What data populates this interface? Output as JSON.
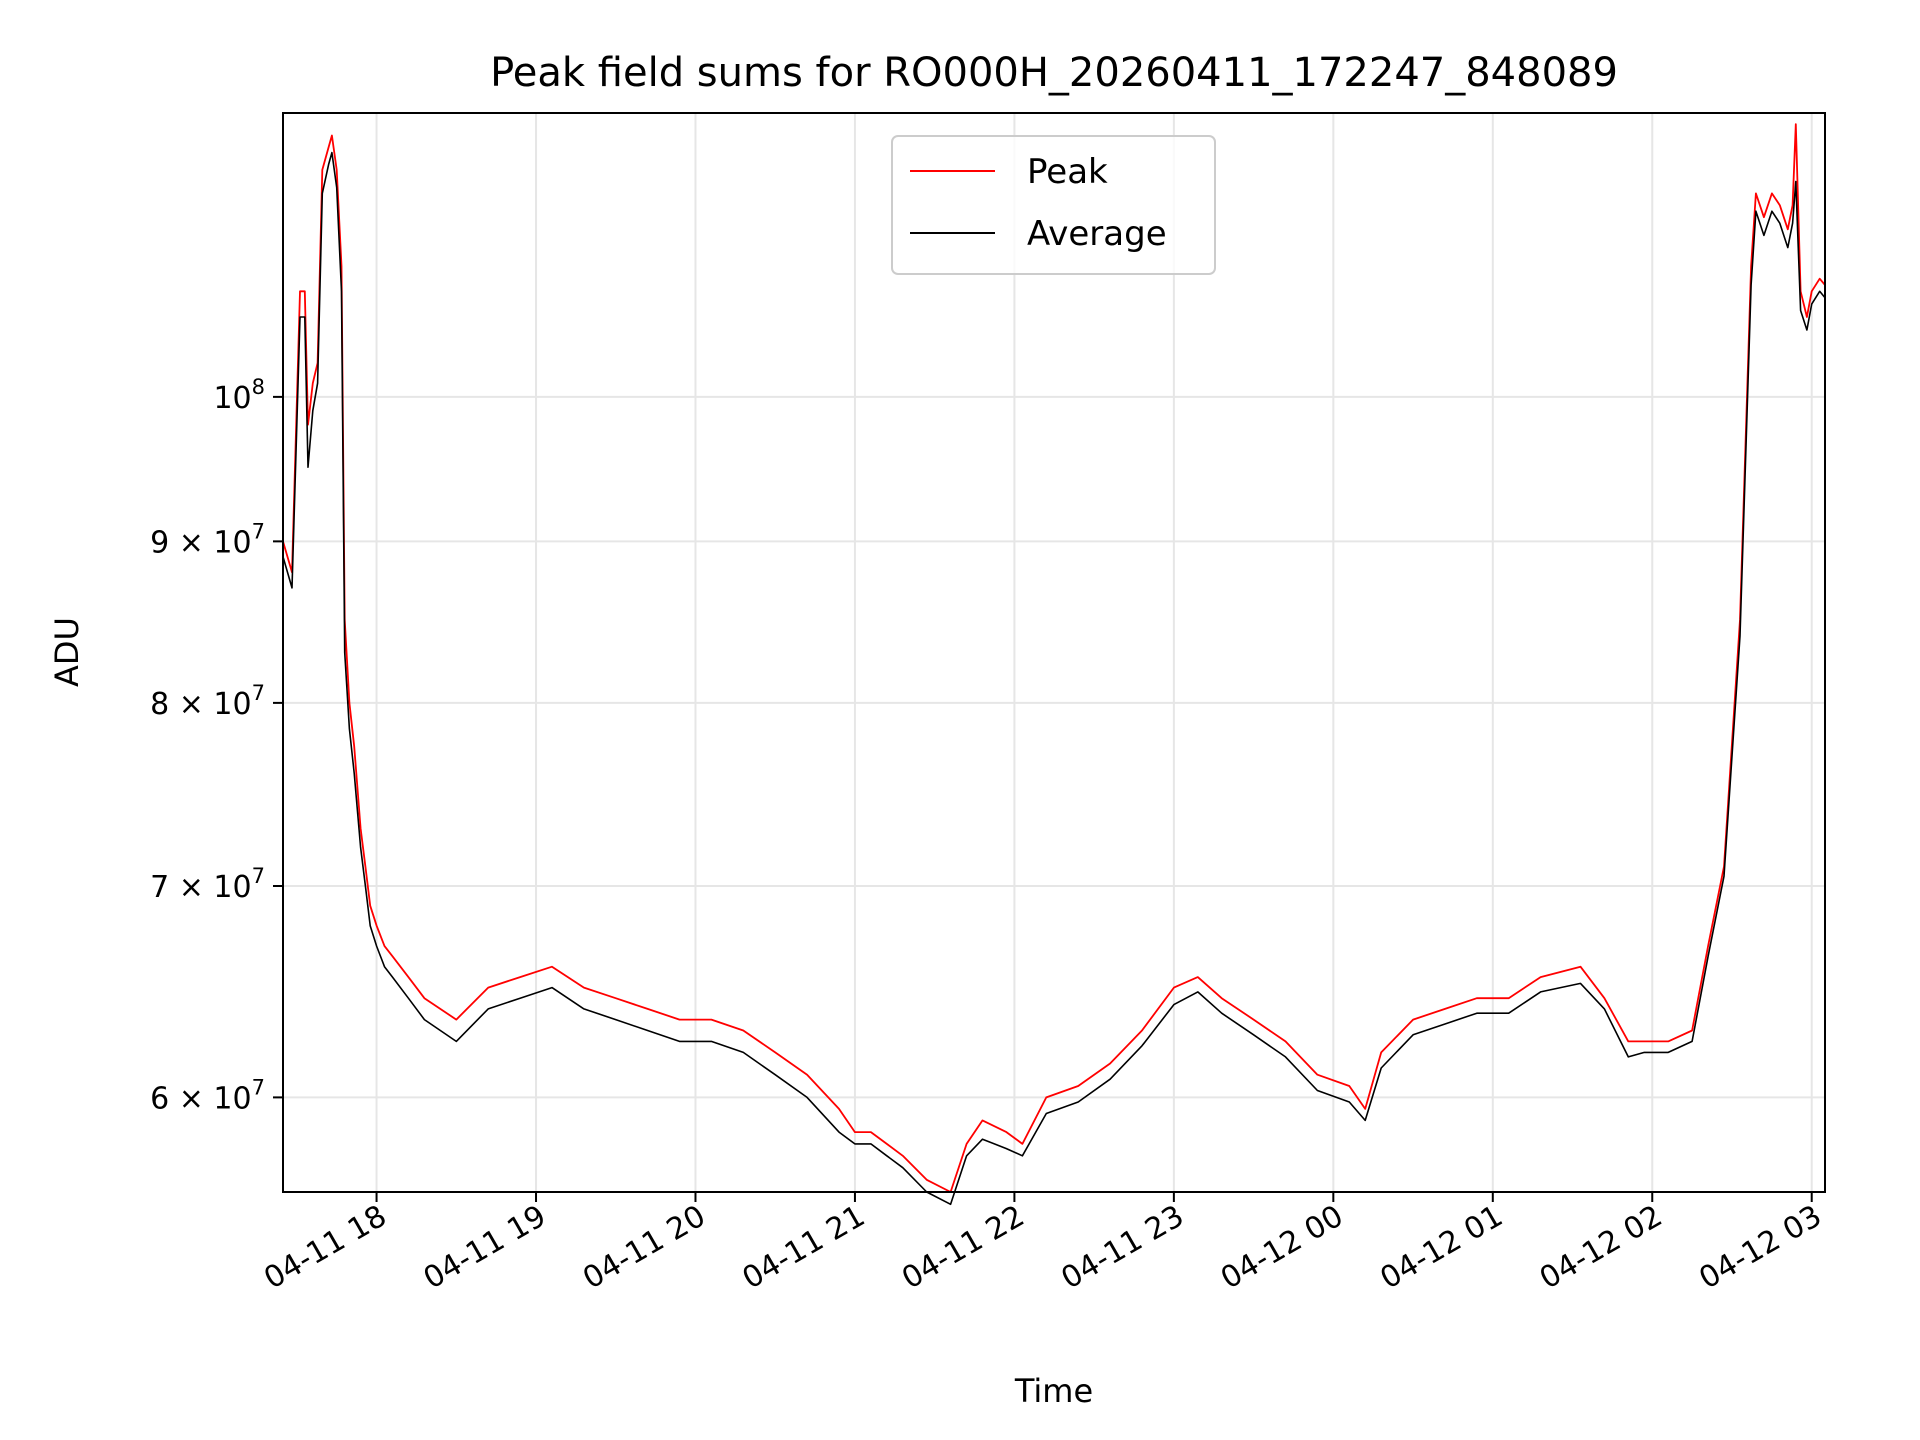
{
  "chart_data": {
    "type": "line",
    "title": "Peak field sums for RO000H_20260411_172247_848089",
    "xlabel": "Time",
    "ylabel": "ADU",
    "yscale": "log",
    "ylim": [
      56000000,
      123000000
    ],
    "xlim": [
      17.4133,
      27.0833
    ],
    "grid": true,
    "legend_position": "top-center",
    "x_ticks": [
      {
        "value": 18,
        "label": "04-11 18"
      },
      {
        "value": 19,
        "label": "04-11 19"
      },
      {
        "value": 20,
        "label": "04-11 20"
      },
      {
        "value": 21,
        "label": "04-11 21"
      },
      {
        "value": 22,
        "label": "04-11 22"
      },
      {
        "value": 23,
        "label": "04-11 23"
      },
      {
        "value": 24,
        "label": "04-12 00"
      },
      {
        "value": 25,
        "label": "04-12 01"
      },
      {
        "value": 26,
        "label": "04-12 02"
      },
      {
        "value": 27,
        "label": "04-12 03"
      }
    ],
    "y_ticks": [
      {
        "value": 60000000,
        "mantissa": "6 × 10",
        "exp": "7"
      },
      {
        "value": 70000000,
        "mantissa": "7 × 10",
        "exp": "7"
      },
      {
        "value": 80000000,
        "mantissa": "8 × 10",
        "exp": "7"
      },
      {
        "value": 90000000,
        "mantissa": "9 × 10",
        "exp": "7"
      },
      {
        "value": 100000000,
        "mantissa": "10",
        "exp": "8"
      }
    ],
    "series": [
      {
        "name": "Peak",
        "color": "#ff0000",
        "x": [
          17.4133,
          17.47,
          17.52,
          17.55,
          17.57,
          17.6,
          17.63,
          17.66,
          17.7,
          17.72,
          17.75,
          17.78,
          17.8,
          17.83,
          17.86,
          17.9,
          17.93,
          17.96,
          18.0,
          18.05,
          18.1,
          18.2,
          18.3,
          18.5,
          18.7,
          18.9,
          19.1,
          19.3,
          19.5,
          19.7,
          19.9,
          20.1,
          20.3,
          20.5,
          20.7,
          20.9,
          21.0,
          21.1,
          21.2,
          21.3,
          21.45,
          21.6,
          21.7,
          21.8,
          21.95,
          22.05,
          22.2,
          22.4,
          22.6,
          22.8,
          23.0,
          23.15,
          23.3,
          23.5,
          23.7,
          23.9,
          24.1,
          24.2,
          24.3,
          24.5,
          24.7,
          24.9,
          25.1,
          25.3,
          25.55,
          25.7,
          25.85,
          25.95,
          26.1,
          26.25,
          26.35,
          26.45,
          26.55,
          26.62,
          26.65,
          26.7,
          26.75,
          26.8,
          26.85,
          26.88,
          26.9,
          26.93,
          26.97,
          27.0,
          27.05,
          27.0833
        ],
        "values": [
          90000000,
          88000000,
          108000000,
          108000000,
          98000000,
          101000000,
          102500000,
          118000000,
          120000000,
          121000000,
          118000000,
          110000000,
          85000000,
          80000000,
          77500000,
          73000000,
          71000000,
          69000000,
          68000000,
          67000000,
          66500000,
          65500000,
          64500000,
          63500000,
          65000000,
          65500000,
          66000000,
          65000000,
          64500000,
          64000000,
          63500000,
          63500000,
          63000000,
          62000000,
          61000000,
          59500000,
          58500000,
          58500000,
          58000000,
          57500000,
          56500000,
          56000000,
          58000000,
          59000000,
          58500000,
          58000000,
          60000000,
          60500000,
          61500000,
          63000000,
          65000000,
          65500000,
          64500000,
          63500000,
          62500000,
          61000000,
          60500000,
          59500000,
          62000000,
          63500000,
          64000000,
          64500000,
          64500000,
          65500000,
          66000000,
          64500000,
          62500000,
          62500000,
          62500000,
          63000000,
          67000000,
          71000000,
          85000000,
          110000000,
          116000000,
          114000000,
          116000000,
          115000000,
          113000000,
          115000000,
          122000000,
          108000000,
          106000000,
          108000000,
          109000000,
          108500000
        ]
      },
      {
        "name": "Average",
        "color": "#000000",
        "x": [
          17.4133,
          17.47,
          17.52,
          17.55,
          17.57,
          17.6,
          17.63,
          17.66,
          17.7,
          17.72,
          17.75,
          17.78,
          17.8,
          17.83,
          17.86,
          17.9,
          17.93,
          17.96,
          18.0,
          18.05,
          18.1,
          18.2,
          18.3,
          18.5,
          18.7,
          18.9,
          19.1,
          19.3,
          19.5,
          19.7,
          19.9,
          20.1,
          20.3,
          20.5,
          20.7,
          20.9,
          21.0,
          21.1,
          21.2,
          21.3,
          21.45,
          21.6,
          21.7,
          21.8,
          21.95,
          22.05,
          22.2,
          22.4,
          22.6,
          22.8,
          23.0,
          23.15,
          23.3,
          23.5,
          23.7,
          23.9,
          24.1,
          24.2,
          24.3,
          24.5,
          24.7,
          24.9,
          25.1,
          25.3,
          25.55,
          25.7,
          25.85,
          25.95,
          26.1,
          26.25,
          26.35,
          26.45,
          26.55,
          26.62,
          26.65,
          26.7,
          26.75,
          26.8,
          26.85,
          26.88,
          26.9,
          26.93,
          26.97,
          27.0,
          27.05,
          27.0833
        ],
        "values": [
          89000000,
          87000000,
          106000000,
          106000000,
          95000000,
          99000000,
          101000000,
          116000000,
          118500000,
          119500000,
          116500000,
          108000000,
          83000000,
          78500000,
          76000000,
          72000000,
          70000000,
          68000000,
          67000000,
          66000000,
          65500000,
          64500000,
          63500000,
          62500000,
          64000000,
          64500000,
          65000000,
          64000000,
          63500000,
          63000000,
          62500000,
          62500000,
          62000000,
          61000000,
          60000000,
          58500000,
          58000000,
          58000000,
          57500000,
          57000000,
          56000000,
          55500000,
          57500000,
          58200000,
          57800000,
          57500000,
          59300000,
          59800000,
          60800000,
          62300000,
          64200000,
          64800000,
          63800000,
          62800000,
          61800000,
          60300000,
          59800000,
          59000000,
          61300000,
          62800000,
          63300000,
          63800000,
          63800000,
          64800000,
          65200000,
          64000000,
          61800000,
          62000000,
          62000000,
          62500000,
          66500000,
          70500000,
          84000000,
          108500000,
          114500000,
          112500000,
          114500000,
          113500000,
          111500000,
          113500000,
          117000000,
          106500000,
          105000000,
          107000000,
          108000000,
          107500000
        ]
      }
    ]
  }
}
